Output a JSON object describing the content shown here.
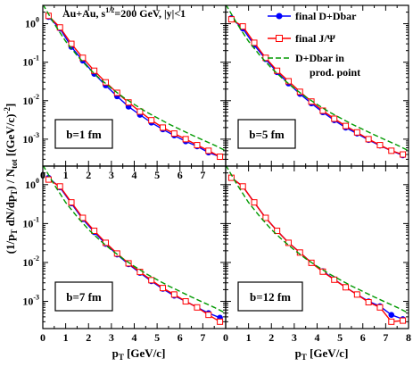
{
  "figure": {
    "ylabel": "(1/p_T dN/dp_T) / N_tot   [(GeV/c)^-2]",
    "ylabel_main": "(1/p",
    "ylabel_sub1": "T",
    "ylabel_mid": " dN/dp",
    "ylabel_sub2": "T",
    "ylabel_tail": ") / N",
    "ylabel_sub3": "tot",
    "ylabel_units": "[(GeV/c)",
    "ylabel_units_sup": "-2",
    "ylabel_units_close": "]",
    "annotation": "Au+Au, s^1/2=200 GeV, |y|<1",
    "annotation_a": "Au+Au, s",
    "annotation_sup": "1/2",
    "annotation_b": "=200 GeV, |y|<1"
  },
  "legend": {
    "items": [
      {
        "label": "final D+Dbar",
        "color": "#0000ff",
        "marker": "filled-circle",
        "dash": "solid"
      },
      {
        "label": "final J/Ψ",
        "color": "#ff0000",
        "marker": "open-square",
        "dash": "solid"
      },
      {
        "label": "D+Dbar in",
        "label2": "prod. point",
        "color": "#009900",
        "marker": "none",
        "dash": "dashed"
      }
    ],
    "placement": "top-right panel, upper area"
  },
  "chart_data": [
    {
      "type": "line",
      "panel_label": "b=1 fm",
      "xlabel": "",
      "ylabel": "",
      "xlim": [
        0,
        8
      ],
      "ylim": [
        0.0002,
        3
      ],
      "yscale": "log",
      "xticks": [
        "0",
        "1",
        "2",
        "3",
        "4",
        "5",
        "6",
        "7"
      ],
      "yticks": [
        "10^-3",
        "10^-2",
        "10^-1",
        "10^0"
      ],
      "series": [
        {
          "name": "final D+Dbar",
          "x": [
            0.25,
            0.75,
            1.25,
            1.75,
            2.25,
            2.75,
            3.25,
            3.75,
            4.25,
            4.75,
            5.25,
            5.75,
            6.25,
            6.75,
            7.25,
            7.75
          ],
          "y": [
            1.5,
            0.75,
            0.25,
            0.11,
            0.05,
            0.025,
            0.013,
            0.007,
            0.0043,
            0.0027,
            0.0018,
            0.00125,
            0.00088,
            0.00065,
            0.00045,
            0.00035
          ]
        },
        {
          "name": "final J/Ψ",
          "x": [
            0.25,
            0.75,
            1.25,
            1.75,
            2.25,
            2.75,
            3.25,
            3.75,
            4.25,
            4.75,
            5.25,
            5.75,
            6.25,
            6.75,
            7.25,
            7.75
          ],
          "y": [
            1.6,
            0.8,
            0.3,
            0.13,
            0.06,
            0.03,
            0.016,
            0.009,
            0.0052,
            0.0031,
            0.002,
            0.0014,
            0.001,
            0.0007,
            0.0005,
            0.00035
          ]
        },
        {
          "name": "D+Dbar in prod. point",
          "x": [
            0,
            0.5,
            1,
            1.5,
            2,
            2.5,
            3,
            3.5,
            4,
            4.5,
            5,
            5.5,
            6,
            6.5,
            7,
            7.5,
            8
          ],
          "y": [
            3.2,
            1.0,
            0.35,
            0.15,
            0.07,
            0.037,
            0.021,
            0.0125,
            0.008,
            0.0052,
            0.0036,
            0.0025,
            0.0018,
            0.0013,
            0.00095,
            0.0007,
            0.0005
          ]
        }
      ]
    },
    {
      "type": "line",
      "panel_label": "b=5 fm",
      "xlabel": "",
      "ylabel": "",
      "xlim": [
        0,
        8
      ],
      "ylim": [
        0.0002,
        3
      ],
      "yscale": "log",
      "xticks": [],
      "yticks": [],
      "series": [
        {
          "name": "final D+Dbar",
          "x": [
            0.25,
            0.75,
            1.25,
            1.75,
            2.25,
            2.75,
            3.25,
            3.75,
            4.25,
            4.75,
            5.25,
            5.75,
            6.25,
            6.75,
            7.25,
            7.75
          ],
          "y": [
            1.4,
            0.75,
            0.28,
            0.12,
            0.055,
            0.028,
            0.015,
            0.0085,
            0.005,
            0.0031,
            0.002,
            0.0014,
            0.00095,
            0.00068,
            0.0005,
            0.00038
          ]
        },
        {
          "name": "final J/Ψ",
          "x": [
            0.25,
            0.75,
            1.25,
            1.75,
            2.25,
            2.75,
            3.25,
            3.75,
            4.25,
            4.75,
            5.25,
            5.75,
            6.25,
            6.75,
            7.25,
            7.75
          ],
          "y": [
            1.3,
            0.85,
            0.32,
            0.13,
            0.06,
            0.032,
            0.017,
            0.0095,
            0.0055,
            0.0034,
            0.0022,
            0.0015,
            0.001,
            0.0007,
            0.0005,
            0.0004
          ]
        },
        {
          "name": "D+Dbar in prod. point",
          "x": [
            0,
            0.5,
            1,
            1.5,
            2,
            2.5,
            3,
            3.5,
            4,
            4.5,
            5,
            5.5,
            6,
            6.5,
            7,
            7.5,
            8
          ],
          "y": [
            3.2,
            1.0,
            0.35,
            0.15,
            0.07,
            0.037,
            0.021,
            0.0125,
            0.008,
            0.0052,
            0.0036,
            0.0025,
            0.0018,
            0.0013,
            0.00095,
            0.0007,
            0.0005
          ]
        }
      ]
    },
    {
      "type": "line",
      "panel_label": "b=7 fm",
      "xlabel": "p_T [GeV/c]",
      "ylabel": "",
      "xlim": [
        0,
        8
      ],
      "ylim": [
        0.0002,
        3
      ],
      "yscale": "log",
      "xticks": [
        "0",
        "1",
        "2",
        "3",
        "4",
        "5",
        "6",
        "7"
      ],
      "yticks": [
        "10^-3",
        "10^-2",
        "10^-1",
        "10^0"
      ],
      "series": [
        {
          "name": "final D+Dbar",
          "x": [
            0.25,
            0.75,
            1.25,
            1.75,
            2.25,
            2.75,
            3.25,
            3.75,
            4.25,
            4.75,
            5.25,
            5.75,
            6.25,
            6.75,
            7.25,
            7.75
          ],
          "y": [
            1.5,
            0.85,
            0.33,
            0.13,
            0.06,
            0.03,
            0.016,
            0.009,
            0.0054,
            0.0033,
            0.0021,
            0.0014,
            0.001,
            0.0007,
            0.0005,
            0.00038
          ]
        },
        {
          "name": "final J/Ψ",
          "x": [
            0.25,
            0.75,
            1.25,
            1.75,
            2.25,
            2.75,
            3.25,
            3.75,
            4.25,
            4.75,
            5.25,
            5.75,
            6.25,
            6.75,
            7.25,
            7.75
          ],
          "y": [
            1.35,
            0.9,
            0.35,
            0.14,
            0.065,
            0.032,
            0.017,
            0.0095,
            0.0057,
            0.0035,
            0.0022,
            0.0015,
            0.001,
            0.0007,
            0.00045,
            0.0003
          ]
        },
        {
          "name": "D+Dbar in prod. point",
          "x": [
            0,
            0.5,
            1,
            1.5,
            2,
            2.5,
            3,
            3.5,
            4,
            4.5,
            5,
            5.5,
            6,
            6.5,
            7,
            7.5,
            8
          ],
          "y": [
            3.2,
            1.0,
            0.35,
            0.15,
            0.07,
            0.037,
            0.021,
            0.0125,
            0.008,
            0.0052,
            0.0036,
            0.0025,
            0.0018,
            0.0013,
            0.00095,
            0.0007,
            0.0005
          ]
        }
      ]
    },
    {
      "type": "line",
      "panel_label": "b=12 fm",
      "xlabel": "p_T [GeV/c]",
      "ylabel": "",
      "xlim": [
        0,
        8
      ],
      "ylim": [
        0.0002,
        3
      ],
      "yscale": "log",
      "xticks": [
        "0",
        "1",
        "2",
        "3",
        "4",
        "5",
        "6",
        "7",
        "8"
      ],
      "yticks": [],
      "series": [
        {
          "name": "final D+Dbar",
          "x": [
            0.25,
            0.75,
            1.25,
            1.75,
            2.25,
            2.75,
            3.25,
            3.75,
            4.25,
            4.75,
            5.25,
            5.75,
            6.25,
            6.75,
            7.25,
            7.75
          ],
          "y": [
            1.5,
            0.9,
            0.35,
            0.14,
            0.065,
            0.032,
            0.018,
            0.0098,
            0.006,
            0.0037,
            0.0023,
            0.0015,
            0.001,
            0.00075,
            0.00045,
            0.00035
          ]
        },
        {
          "name": "final J/Ψ",
          "x": [
            0.25,
            0.75,
            1.25,
            1.75,
            2.25,
            2.75,
            3.25,
            3.75,
            4.25,
            4.75,
            5.25,
            5.75,
            6.25,
            6.75,
            7.25,
            7.75
          ],
          "y": [
            1.5,
            0.9,
            0.35,
            0.14,
            0.065,
            0.032,
            0.018,
            0.0098,
            0.0058,
            0.0036,
            0.0023,
            0.0015,
            0.00095,
            0.0007,
            0.0003,
            0.00032
          ]
        },
        {
          "name": "D+Dbar in prod. point",
          "x": [
            0,
            0.5,
            1,
            1.5,
            2,
            2.5,
            3,
            3.5,
            4,
            4.5,
            5,
            5.5,
            6,
            6.5,
            7,
            7.5,
            8
          ],
          "y": [
            3.2,
            1.0,
            0.35,
            0.15,
            0.07,
            0.037,
            0.021,
            0.0125,
            0.008,
            0.0052,
            0.0036,
            0.0025,
            0.0018,
            0.0013,
            0.00095,
            0.0007,
            0.0005
          ]
        }
      ]
    }
  ]
}
